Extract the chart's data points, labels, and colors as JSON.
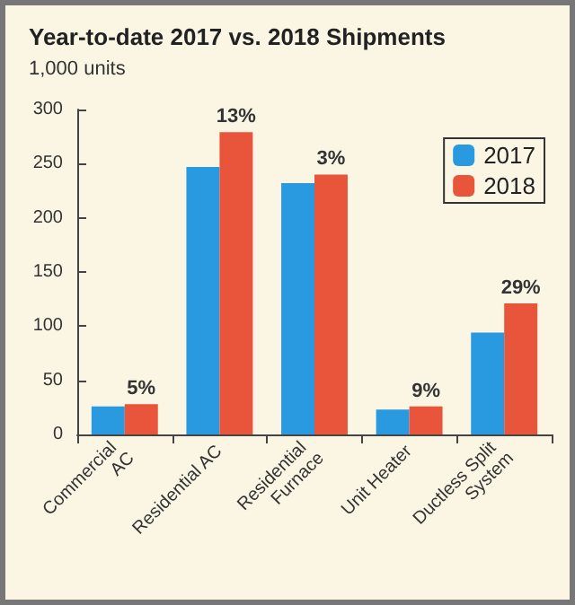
{
  "chart_data": {
    "type": "bar",
    "title": "Year-to-date 2017 vs. 2018 Shipments",
    "ylabel": "1,000 units",
    "categories": [
      "Commercial AC",
      "Residential AC",
      "Residential Furnace",
      "Unit Heater",
      "Ductless Split System"
    ],
    "series": [
      {
        "name": "2017",
        "color": "#2a9ae0",
        "values": [
          26,
          247,
          232,
          23,
          94
        ]
      },
      {
        "name": "2018",
        "color": "#e8553a",
        "values": [
          28,
          279,
          240,
          26,
          121
        ]
      }
    ],
    "annotations": [
      {
        "text": "5%",
        "x": "Commercial AC",
        "y": 28
      },
      {
        "text": "13%",
        "x": "Residential AC",
        "y": 279
      },
      {
        "text": "3%",
        "x": "Residential Furnace",
        "y": 240
      },
      {
        "text": "9%",
        "x": "Unit Heater",
        "y": 26
      },
      {
        "text": "29%",
        "x": "Ductless Split System",
        "y": 121
      }
    ],
    "ylim": [
      0,
      300
    ],
    "yticks": [
      0,
      50,
      100,
      150,
      200,
      250,
      300
    ],
    "grid": false,
    "legend": "top right"
  }
}
